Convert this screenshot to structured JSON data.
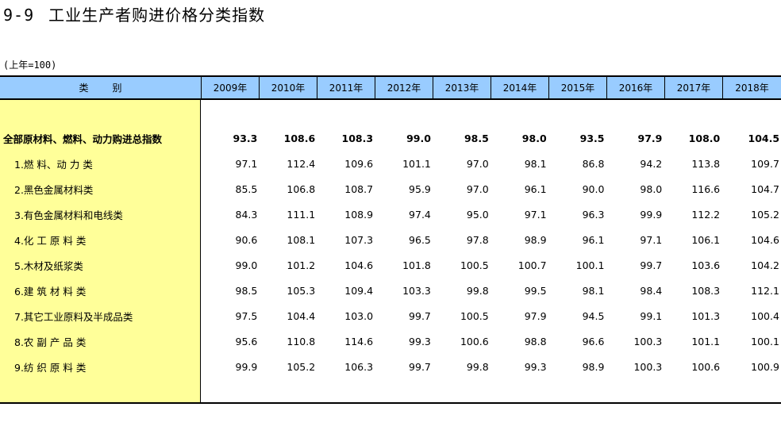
{
  "title": {
    "number": "9-9",
    "text": "工业生产者购进价格分类指数"
  },
  "unit_note": "(上年=100)",
  "header": {
    "category": "类别",
    "years": [
      "2009年",
      "2010年",
      "2011年",
      "2012年",
      "2013年",
      "2014年",
      "2015年",
      "2016年",
      "2017年",
      "2018年"
    ]
  },
  "rows": [
    {
      "label": "全部原材料、燃料、动力购进总指数",
      "values": [
        "93.3",
        "108.6",
        "108.3",
        "99.0",
        "98.5",
        "98.0",
        "93.5",
        "97.9",
        "108.0",
        "104.5"
      ]
    },
    {
      "label": "1.燃 料、动 力 类",
      "values": [
        "97.1",
        "112.4",
        "109.6",
        "101.1",
        "97.0",
        "98.1",
        "86.8",
        "94.2",
        "113.8",
        "109.7"
      ]
    },
    {
      "label": "2.黑色金属材料类",
      "values": [
        "85.5",
        "106.8",
        "108.7",
        "95.9",
        "97.0",
        "96.1",
        "90.0",
        "98.0",
        "116.6",
        "104.7"
      ]
    },
    {
      "label": "3.有色金属材料和电线类",
      "values": [
        "84.3",
        "111.1",
        "108.9",
        "97.4",
        "95.0",
        "97.1",
        "96.3",
        "99.9",
        "112.2",
        "105.2"
      ]
    },
    {
      "label": "4.化 工 原 料 类",
      "values": [
        "90.6",
        "108.1",
        "107.3",
        "96.5",
        "97.8",
        "98.9",
        "96.1",
        "97.1",
        "106.1",
        "104.6"
      ]
    },
    {
      "label": "5.木材及纸浆类",
      "values": [
        "99.0",
        "101.2",
        "104.6",
        "101.8",
        "100.5",
        "100.7",
        "100.1",
        "99.7",
        "103.6",
        "104.2"
      ]
    },
    {
      "label": "6.建 筑 材 料 类",
      "values": [
        "98.5",
        "105.3",
        "109.4",
        "103.3",
        "99.8",
        "99.5",
        "98.1",
        "98.4",
        "108.3",
        "112.1"
      ]
    },
    {
      "label": "7.其它工业原料及半成品类",
      "values": [
        "97.5",
        "104.4",
        "103.0",
        "99.7",
        "100.5",
        "97.9",
        "94.5",
        "99.1",
        "101.3",
        "100.4"
      ]
    },
    {
      "label": "8.农 副 产 品 类",
      "values": [
        "95.6",
        "110.8",
        "114.6",
        "99.3",
        "100.6",
        "98.8",
        "96.6",
        "100.3",
        "101.1",
        "100.1"
      ]
    },
    {
      "label": "9.纺 织 原 料 类",
      "values": [
        "99.9",
        "105.2",
        "106.3",
        "99.7",
        "99.8",
        "99.3",
        "98.9",
        "100.3",
        "100.6",
        "100.9"
      ]
    }
  ],
  "colors": {
    "header_bg": "#99ccff",
    "category_bg": "#ffff99"
  }
}
